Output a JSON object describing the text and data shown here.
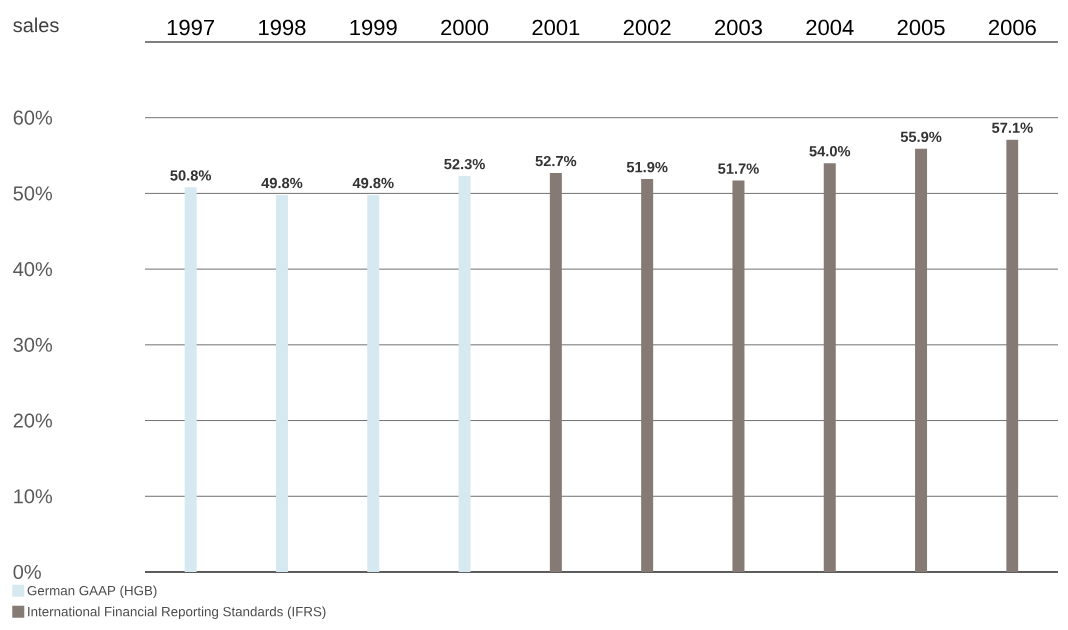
{
  "chart_data": {
    "type": "bar",
    "ylabel": "sales",
    "categories": [
      "1997",
      "1998",
      "1999",
      "2000",
      "2001",
      "2002",
      "2003",
      "2004",
      "2005",
      "2006"
    ],
    "series": [
      {
        "name": "German GAAP (HGB)",
        "color": "#d6e8f0",
        "values": [
          50.8,
          49.8,
          49.8,
          52.3,
          null,
          null,
          null,
          null,
          null,
          null
        ],
        "value_labels": [
          "50.8%",
          "49.8%",
          "49.8%",
          "52.3%",
          null,
          null,
          null,
          null,
          null,
          null
        ]
      },
      {
        "name": "International Financial Reporting Standards (IFRS)",
        "color": "#857a74",
        "values": [
          null,
          null,
          null,
          null,
          52.7,
          51.9,
          51.7,
          54.0,
          55.9,
          57.1
        ],
        "value_labels": [
          null,
          null,
          null,
          null,
          "52.7%",
          "51.9%",
          "51.7%",
          "54.0%",
          "55.9%",
          "57.1%"
        ]
      }
    ],
    "ylim": [
      0,
      70
    ],
    "yticks": [
      {
        "value": 0,
        "label": "0%"
      },
      {
        "value": 10,
        "label": "10%"
      },
      {
        "value": 20,
        "label": "20%"
      },
      {
        "value": 30,
        "label": "30%"
      },
      {
        "value": 40,
        "label": "40%"
      },
      {
        "value": 50,
        "label": "50%"
      },
      {
        "value": 60,
        "label": "60%"
      }
    ],
    "grid": "y",
    "legend": "bottom left"
  }
}
